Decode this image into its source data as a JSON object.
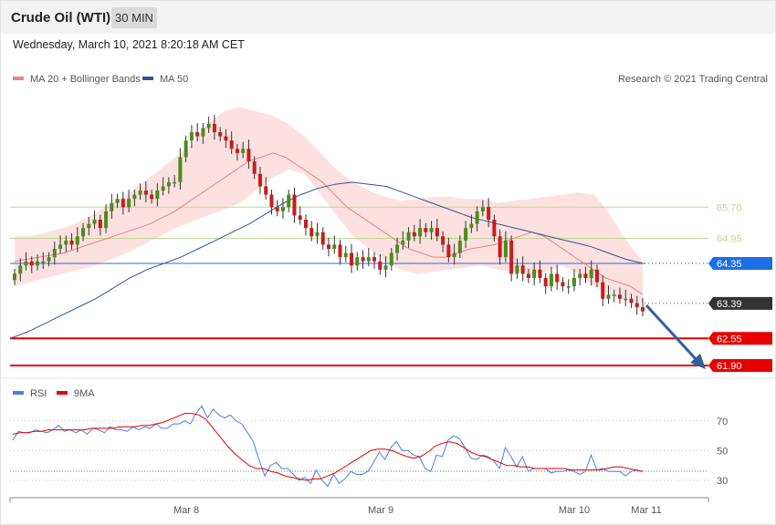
{
  "header": {
    "title": "Crude Oil (WTI)",
    "timeframe": "30 MIN"
  },
  "datetime": "Wednesday, March 10, 2021 8:20:18 AM CET",
  "legend": {
    "main": [
      {
        "label": "MA 20 + Bollinger Bands",
        "color": "#f08080"
      },
      {
        "label": "MA 50",
        "color": "#2f5597"
      }
    ],
    "rsi": [
      {
        "label": "RSI",
        "color": "#4a7fe0"
      },
      {
        "label": "9MA",
        "color": "#e60000"
      }
    ]
  },
  "copyright": "Research © 2021 Trading Central",
  "colors": {
    "bull": "#4c8c1e",
    "bear": "#cc1a1a",
    "band": "#fde0e0",
    "ma20": "#f08080",
    "ma50": "#2f5597",
    "level_green": "#b5d88c",
    "level_blue": "#1c6fe6",
    "level_red": "#e60000",
    "arrow": "#2f5fa0",
    "current": "#333333"
  },
  "chart_data": [
    {
      "type": "candlestick",
      "title": "Crude Oil (WTI)",
      "interval": "30 MIN",
      "x_ticks": [
        "Mar 8",
        "Mar 9",
        "Mar 10",
        "Mar 11"
      ],
      "ylim": [
        61.6,
        67.0
      ],
      "levels": [
        {
          "value": 65.7,
          "label": "65.70",
          "kind": "resistance"
        },
        {
          "value": 64.95,
          "label": "64.95",
          "kind": "resistance"
        },
        {
          "value": 64.35,
          "label": "64.35",
          "kind": "pivot"
        },
        {
          "value": 63.39,
          "label": "63.39",
          "kind": "last"
        },
        {
          "value": 62.55,
          "label": "62.55",
          "kind": "support"
        },
        {
          "value": 61.9,
          "label": "61.90",
          "kind": "support"
        }
      ],
      "close": [
        64.1,
        64.3,
        64.4,
        64.3,
        64.4,
        64.4,
        64.5,
        64.7,
        64.8,
        64.9,
        64.8,
        65.0,
        65.2,
        65.3,
        65.4,
        65.2,
        65.6,
        65.8,
        65.9,
        65.7,
        65.9,
        66.0,
        66.1,
        66.0,
        65.9,
        66.1,
        66.2,
        66.3,
        66.3,
        66.9,
        67.3,
        67.5,
        67.4,
        67.6,
        67.7,
        67.5,
        67.4,
        67.3,
        67.1,
        67.0,
        67.1,
        66.8,
        66.5,
        66.2,
        66.0,
        65.7,
        65.6,
        65.7,
        66.0,
        65.5,
        65.4,
        65.2,
        65.0,
        65.1,
        64.8,
        64.7,
        64.8,
        64.5,
        64.6,
        64.3,
        64.5,
        64.4,
        64.5,
        64.4,
        64.2,
        64.3,
        64.6,
        64.8,
        64.9,
        65.1,
        65.0,
        65.2,
        65.1,
        65.2,
        65.0,
        64.8,
        64.5,
        64.6,
        64.9,
        65.2,
        65.3,
        65.6,
        65.7,
        65.4,
        65.0,
        64.5,
        64.9,
        64.1,
        64.3,
        64.1,
        64.0,
        64.2,
        64.0,
        63.8,
        64.1,
        63.9,
        63.8,
        63.8,
        64.0,
        64.1,
        64.0,
        64.2,
        63.9,
        63.5,
        63.6,
        63.6,
        63.5,
        63.5,
        63.4,
        63.3,
        63.2
      ],
      "ma20": [
        64.4,
        64.45,
        64.5,
        64.55,
        64.6,
        64.7,
        64.8,
        64.9,
        65.0,
        65.1,
        65.2,
        65.3,
        65.45,
        65.6,
        65.8,
        66.0,
        66.2,
        66.4,
        66.6,
        66.8,
        66.9,
        67.0,
        66.9,
        66.7,
        66.5,
        66.3,
        66.0,
        65.7,
        65.5,
        65.3,
        65.1,
        64.9,
        64.7,
        64.6,
        64.5,
        64.5,
        64.6,
        64.7,
        64.75,
        64.8,
        64.9,
        65.0,
        65.1,
        65.0,
        64.8,
        64.6,
        64.4,
        64.2,
        64.0,
        63.9,
        63.8,
        63.6
      ],
      "ma50": [
        62.55,
        62.7,
        62.9,
        63.1,
        63.3,
        63.5,
        63.75,
        64.0,
        64.2,
        64.35,
        64.5,
        64.7,
        64.9,
        65.1,
        65.3,
        65.55,
        65.8,
        66.0,
        66.15,
        66.25,
        66.3,
        66.25,
        66.2,
        66.05,
        65.9,
        65.75,
        65.6,
        65.45,
        65.35,
        65.25,
        65.15,
        65.05,
        64.95,
        64.85,
        64.75,
        64.6,
        64.45,
        64.35
      ],
      "upper_band": [
        65.0,
        65.0,
        65.1,
        65.2,
        65.35,
        65.55,
        65.8,
        66.0,
        66.3,
        66.6,
        66.9,
        67.2,
        67.7,
        68.0,
        68.1,
        68.0,
        67.9,
        67.7,
        67.4,
        67.0,
        66.6,
        66.3,
        66.1,
        65.95,
        65.85,
        65.9,
        65.95,
        65.95,
        65.9,
        65.9,
        65.8,
        65.85,
        65.9,
        65.95,
        66.0,
        66.05,
        66.0,
        65.5,
        64.9,
        64.4
      ],
      "lower_band": [
        63.8,
        63.9,
        64.0,
        64.1,
        64.2,
        64.3,
        64.45,
        64.6,
        64.8,
        65.0,
        65.2,
        65.35,
        65.5,
        65.65,
        65.8,
        66.1,
        66.4,
        66.6,
        66.5,
        66.0,
        65.5,
        65.0,
        64.7,
        64.4,
        64.2,
        64.1,
        64.15,
        64.2,
        64.25,
        64.3,
        64.2,
        64.15,
        64.1,
        64.15,
        64.3,
        64.1,
        63.8,
        63.6,
        63.45,
        63.4
      ]
    },
    {
      "type": "line",
      "title": "RSI",
      "x_ticks": [
        "Mar 8",
        "Mar 9",
        "Mar 10",
        "Mar 11"
      ],
      "y_ticks": [
        30,
        50,
        70
      ],
      "ylim": [
        22,
        84
      ],
      "series": [
        {
          "name": "RSI",
          "values": [
            57,
            63,
            62,
            62,
            64,
            63,
            62,
            64,
            67,
            63,
            64,
            62,
            64,
            61,
            65,
            64,
            62,
            66,
            64,
            64,
            63,
            66,
            64,
            66,
            65,
            68,
            65,
            65,
            68,
            68,
            70,
            68,
            75,
            80,
            72,
            78,
            74,
            72,
            74,
            70,
            68,
            62,
            56,
            44,
            33,
            40,
            42,
            38,
            38,
            34,
            30,
            32,
            28,
            37,
            30,
            26,
            34,
            28,
            31,
            36,
            34,
            34,
            36,
            42,
            49,
            44,
            52,
            56,
            50,
            50,
            47,
            46,
            38,
            36,
            47,
            46,
            57,
            60,
            58,
            52,
            45,
            44,
            47,
            46,
            43,
            38,
            52,
            46,
            39,
            46,
            36,
            38,
            38,
            38,
            35,
            36,
            36,
            37,
            36,
            34,
            36,
            47,
            37,
            38,
            36,
            36,
            36,
            33,
            36,
            37,
            36
          ],
          "color": "#4a7fe0"
        },
        {
          "name": "9MA",
          "values": [
            61,
            62,
            62,
            63,
            63,
            64,
            64,
            64,
            64,
            64,
            64,
            65,
            65,
            65,
            65,
            66,
            66,
            66,
            67,
            67,
            68,
            69,
            71,
            73,
            75,
            75,
            74,
            71,
            65,
            59,
            53,
            48,
            44,
            40,
            38,
            38,
            36,
            35,
            33,
            32,
            31,
            30,
            31,
            31,
            33,
            35,
            38,
            41,
            44,
            47,
            50,
            51,
            51,
            50,
            48,
            46,
            45,
            46,
            49,
            53,
            55,
            56,
            55,
            52,
            49,
            47,
            46,
            44,
            42,
            40,
            40,
            39,
            39,
            38,
            38,
            38,
            38,
            38,
            37,
            37,
            37,
            37,
            37,
            38,
            39,
            39,
            38,
            37,
            36
          ],
          "color": "#e60000"
        }
      ]
    }
  ]
}
